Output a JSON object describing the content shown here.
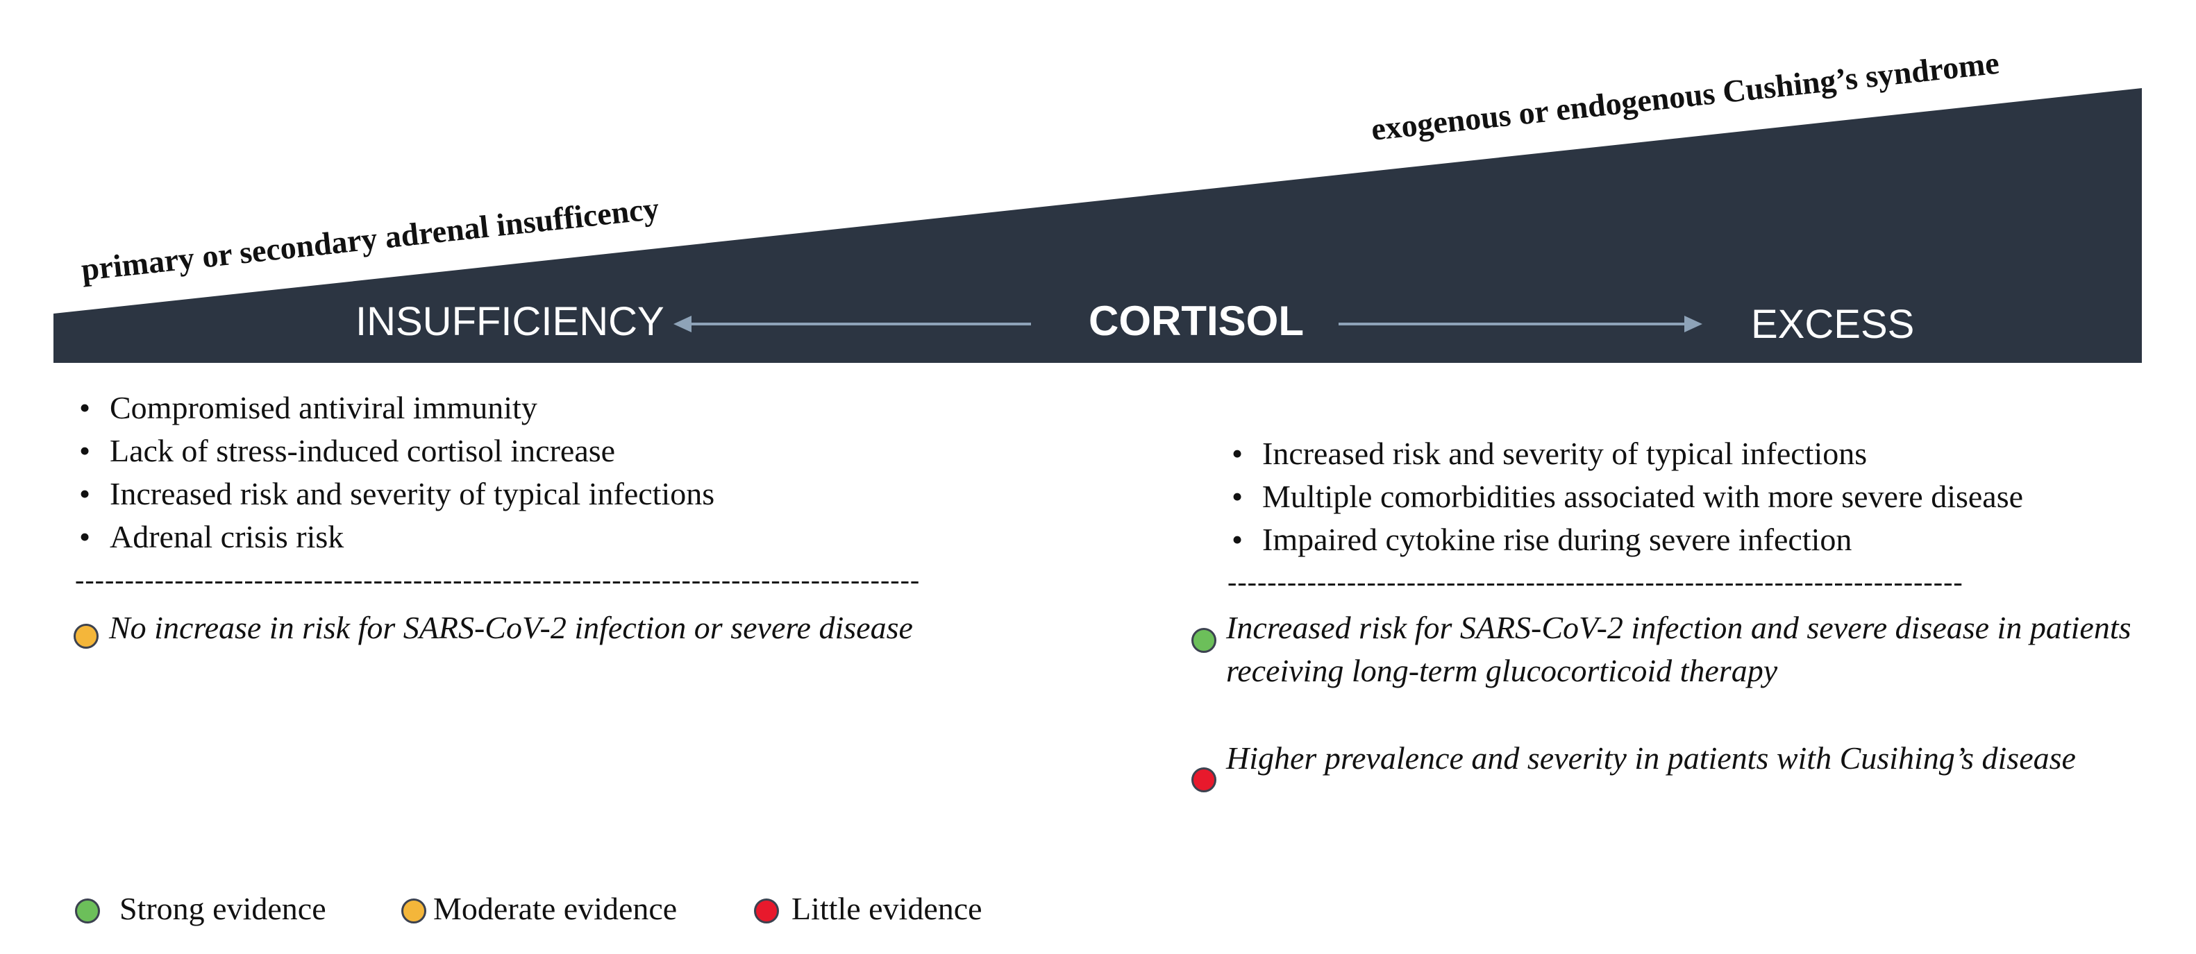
{
  "header": {
    "left_label": "primary or secondary adrenal insufficency",
    "right_label": "exogenous or endogenous Cushing’s syndrome"
  },
  "bar": {
    "left": "INSUFFICIENCY",
    "center": "CORTISOL",
    "right": "EXCESS",
    "color": "#2c3542",
    "arrow_color": "#8ea3b8"
  },
  "insufficiency": {
    "bullets": [
      "Compromised antiviral immunity",
      "Lack of stress-induced cortisol increase",
      "Increased risk and severity of typical infections",
      "Adrenal crisis risk"
    ],
    "divider": "-------------------------------------------------------------------------------------",
    "evidence": [
      {
        "level": "moderate",
        "text": "No increase in risk for SARS-CoV-2 infection or severe disease"
      }
    ]
  },
  "excess": {
    "bullets": [
      "Increased risk and severity of typical infections",
      "Multiple comorbidities associated with more severe disease",
      "Impaired cytokine rise during severe infection"
    ],
    "divider": "--------------------------------------------------------------------------",
    "evidence": [
      {
        "level": "strong",
        "text": "Increased risk for SARS-CoV-2 infection and severe disease in patients receiving long-term glucocorticoid therapy"
      },
      {
        "level": "little",
        "text": "Higher prevalence and severity in patients with Cusihing’s disease"
      }
    ]
  },
  "legend": [
    {
      "level": "strong",
      "label": "Strong evidence"
    },
    {
      "level": "moderate",
      "label": "Moderate evidence"
    },
    {
      "level": "little",
      "label": "Little evidence"
    }
  ],
  "colors": {
    "strong": "#6cbf5a",
    "moderate": "#f4b63a",
    "little": "#e8192c"
  }
}
